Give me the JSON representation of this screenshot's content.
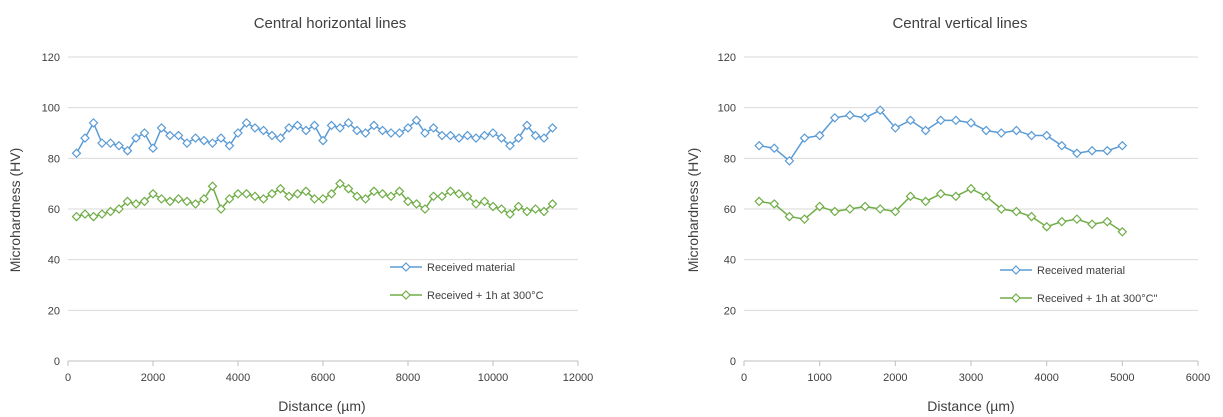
{
  "chart_data": [
    {
      "type": "line",
      "title": "Central horizontal lines",
      "xlabel": "Distance (µm)",
      "ylabel": "Microhardness (HV)",
      "xlim": [
        0,
        12000
      ],
      "ylim": [
        0,
        120
      ],
      "xticks": [
        0,
        2000,
        4000,
        6000,
        8000,
        10000,
        12000
      ],
      "yticks": [
        0,
        20,
        40,
        60,
        80,
        100,
        120
      ],
      "grid": "horizontal",
      "legend_position": "lower-right",
      "series": [
        {
          "name": "Received material",
          "color": "#5b9bd5",
          "marker": "diamond",
          "x": [
            200,
            400,
            600,
            800,
            1000,
            1200,
            1400,
            1600,
            1800,
            2000,
            2200,
            2400,
            2600,
            2800,
            3000,
            3200,
            3400,
            3600,
            3800,
            4000,
            4200,
            4400,
            4600,
            4800,
            5000,
            5200,
            5400,
            5600,
            5800,
            6000,
            6200,
            6400,
            6600,
            6800,
            7000,
            7200,
            7400,
            7600,
            7800,
            8000,
            8200,
            8400,
            8600,
            8800,
            9000,
            9200,
            9400,
            9600,
            9800,
            10000,
            10200,
            10400,
            10600,
            10800,
            11000,
            11200,
            11400
          ],
          "y": [
            82,
            88,
            94,
            86,
            86,
            85,
            83,
            88,
            90,
            84,
            92,
            89,
            89,
            86,
            88,
            87,
            86,
            88,
            85,
            90,
            94,
            92,
            91,
            89,
            88,
            92,
            93,
            91,
            93,
            87,
            93,
            92,
            94,
            91,
            90,
            93,
            91,
            90,
            90,
            92,
            95,
            90,
            92,
            89,
            89,
            88,
            89,
            88,
            89,
            90,
            88,
            85,
            88,
            93,
            89,
            88,
            92
          ]
        },
        {
          "name": "Received + 1h at 300°C",
          "color": "#70ad47",
          "marker": "diamond",
          "x": [
            200,
            400,
            600,
            800,
            1000,
            1200,
            1400,
            1600,
            1800,
            2000,
            2200,
            2400,
            2600,
            2800,
            3000,
            3200,
            3400,
            3600,
            3800,
            4000,
            4200,
            4400,
            4600,
            4800,
            5000,
            5200,
            5400,
            5600,
            5800,
            6000,
            6200,
            6400,
            6600,
            6800,
            7000,
            7200,
            7400,
            7600,
            7800,
            8000,
            8200,
            8400,
            8600,
            8800,
            9000,
            9200,
            9400,
            9600,
            9800,
            10000,
            10200,
            10400,
            10600,
            10800,
            11000,
            11200,
            11400
          ],
          "y": [
            57,
            58,
            57,
            58,
            59,
            60,
            63,
            62,
            63,
            66,
            64,
            63,
            64,
            63,
            62,
            64,
            69,
            60,
            64,
            66,
            66,
            65,
            64,
            66,
            68,
            65,
            66,
            67,
            64,
            64,
            66,
            70,
            68,
            65,
            64,
            67,
            66,
            65,
            67,
            63,
            62,
            60,
            65,
            65,
            67,
            66,
            65,
            62,
            63,
            61,
            60,
            58,
            61,
            59,
            60,
            59,
            62
          ]
        }
      ]
    },
    {
      "type": "line",
      "title": "Central vertical lines",
      "xlabel": "Distance (µm)",
      "ylabel": "Microhardness (HV)",
      "xlim": [
        0,
        6000
      ],
      "ylim": [
        0,
        120
      ],
      "xticks": [
        0,
        1000,
        2000,
        3000,
        4000,
        5000,
        6000
      ],
      "yticks": [
        0,
        20,
        40,
        60,
        80,
        100,
        120
      ],
      "grid": "horizontal",
      "legend_position": "lower-right",
      "series": [
        {
          "name": "Received material",
          "color": "#5b9bd5",
          "marker": "diamond",
          "x": [
            200,
            400,
            600,
            800,
            1000,
            1200,
            1400,
            1600,
            1800,
            2000,
            2200,
            2400,
            2600,
            2800,
            3000,
            3200,
            3400,
            3600,
            3800,
            4000,
            4200,
            4400,
            4600,
            4800,
            5000
          ],
          "y": [
            85,
            84,
            79,
            88,
            89,
            96,
            97,
            96,
            99,
            92,
            95,
            91,
            95,
            95,
            94,
            91,
            90,
            91,
            89,
            89,
            85,
            82,
            83,
            83,
            85
          ]
        },
        {
          "name": "Received + 1h at 300°C\"",
          "color": "#70ad47",
          "marker": "diamond",
          "x": [
            200,
            400,
            600,
            800,
            1000,
            1200,
            1400,
            1600,
            1800,
            2000,
            2200,
            2400,
            2600,
            2800,
            3000,
            3200,
            3400,
            3600,
            3800,
            4000,
            4200,
            4400,
            4600,
            4800,
            5000
          ],
          "y": [
            63,
            62,
            57,
            56,
            61,
            59,
            60,
            61,
            60,
            59,
            65,
            63,
            66,
            65,
            68,
            65,
            60,
            59,
            57,
            53,
            55,
            56,
            54,
            55,
            51
          ]
        }
      ]
    }
  ]
}
